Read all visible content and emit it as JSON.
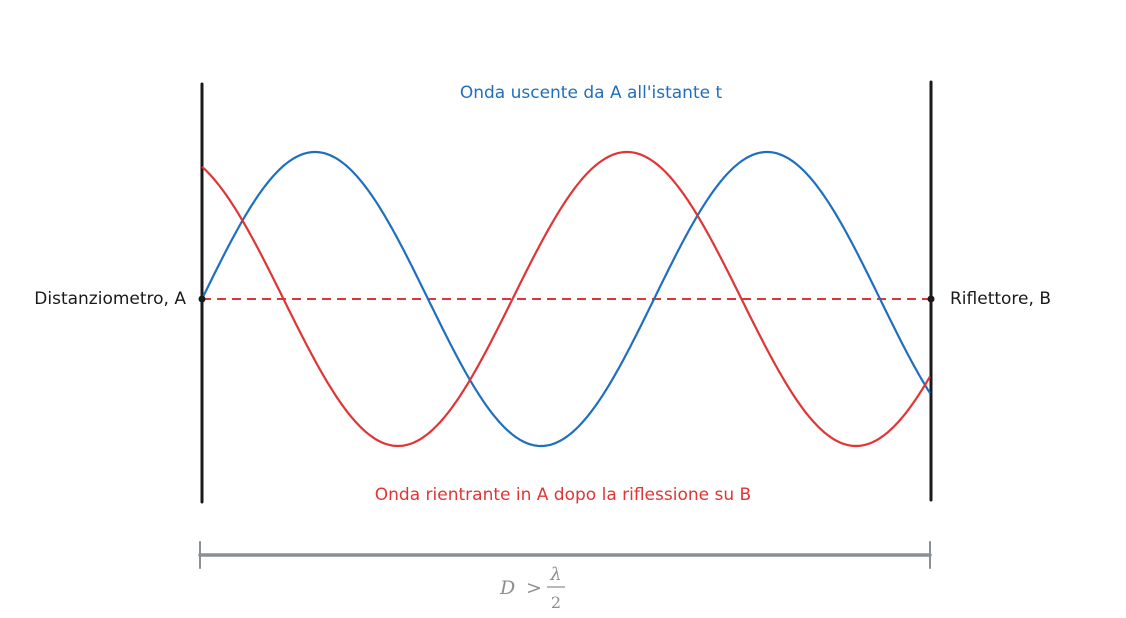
{
  "labels": {
    "outgoing_wave": "Onda uscente da A all'istante t",
    "returning_wave": "Onda rientrante in A dopo la riflessione su B",
    "point_a": "Distanziometro, A",
    "point_b": "Riflettore, B"
  },
  "formula": {
    "lhs": "D",
    "operator": ">",
    "numerator": "λ",
    "denominator": "2"
  },
  "colors": {
    "outgoing_wave": "#1f6fc0",
    "returning_wave": "#e03535",
    "axis": "#e03535",
    "walls": "#1a1a1a",
    "dimension": "#8a8f94",
    "text": "#1a1a1a"
  }
}
